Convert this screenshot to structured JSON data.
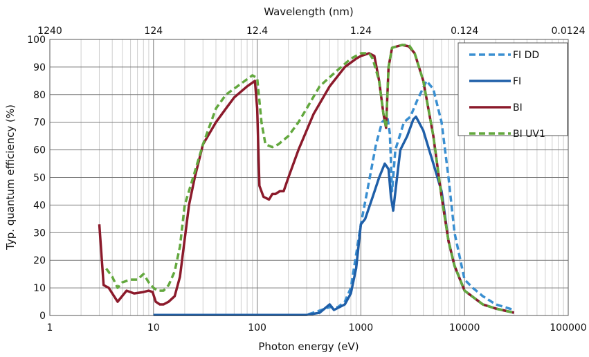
{
  "chart_data": {
    "type": "line",
    "xlabel": "Photon energy (eV)",
    "ylabel": "Typ. quantum efficiency (%)",
    "x2label": "Wavelength (nm)",
    "x_scale": "log",
    "xlim": [
      1,
      100000
    ],
    "ylim": [
      0,
      100
    ],
    "grid": true,
    "legend_position": "top-right",
    "x_ticks": [
      {
        "value": 1,
        "label": "1"
      },
      {
        "value": 10,
        "label": "10"
      },
      {
        "value": 100,
        "label": "100"
      },
      {
        "value": 1000,
        "label": "1000"
      },
      {
        "value": 10000,
        "label": "10000"
      },
      {
        "value": 100000,
        "label": "100000"
      }
    ],
    "x2_ticks": [
      {
        "value": 1,
        "label": "1240"
      },
      {
        "value": 10,
        "label": "124"
      },
      {
        "value": 100,
        "label": "12.4"
      },
      {
        "value": 1000,
        "label": "1.24"
      },
      {
        "value": 10000,
        "label": "0.124"
      },
      {
        "value": 100000,
        "label": "0.0124"
      }
    ],
    "y_ticks": [
      0,
      10,
      20,
      30,
      40,
      50,
      60,
      70,
      80,
      90,
      100
    ],
    "series": [
      {
        "name": "FI DD",
        "color": "#3a8fd1",
        "dash": "dashed",
        "points": [
          [
            10,
            0.2
          ],
          [
            100,
            0.2
          ],
          [
            300,
            0.2
          ],
          [
            500,
            3
          ],
          [
            600,
            3
          ],
          [
            700,
            5
          ],
          [
            800,
            10
          ],
          [
            900,
            22
          ],
          [
            1000,
            33
          ],
          [
            1150,
            45
          ],
          [
            1400,
            62
          ],
          [
            1600,
            70
          ],
          [
            1800,
            72
          ],
          [
            1900,
            66
          ],
          [
            2000,
            45
          ],
          [
            2150,
            60
          ],
          [
            2600,
            70
          ],
          [
            3000,
            72
          ],
          [
            3500,
            78
          ],
          [
            4300,
            85
          ],
          [
            5000,
            82
          ],
          [
            6000,
            70
          ],
          [
            7000,
            50
          ],
          [
            8000,
            30
          ],
          [
            10000,
            13
          ],
          [
            12000,
            10
          ],
          [
            15000,
            7
          ],
          [
            20000,
            4
          ],
          [
            30000,
            2
          ]
        ]
      },
      {
        "name": "FI",
        "color": "#1f5fa8",
        "dash": "solid",
        "points": [
          [
            10,
            0.2
          ],
          [
            100,
            0.2
          ],
          [
            300,
            0.2
          ],
          [
            400,
            1
          ],
          [
            500,
            4
          ],
          [
            550,
            2
          ],
          [
            700,
            4
          ],
          [
            800,
            8
          ],
          [
            900,
            17
          ],
          [
            1000,
            33
          ],
          [
            1100,
            35
          ],
          [
            1300,
            43
          ],
          [
            1500,
            50
          ],
          [
            1700,
            55
          ],
          [
            1850,
            53
          ],
          [
            1950,
            43
          ],
          [
            2050,
            38
          ],
          [
            2200,
            48
          ],
          [
            2400,
            60
          ],
          [
            2800,
            65
          ],
          [
            3200,
            71
          ],
          [
            3400,
            72
          ],
          [
            4000,
            67
          ],
          [
            5000,
            55
          ],
          [
            6000,
            45
          ],
          [
            7000,
            27
          ],
          [
            8000,
            18
          ],
          [
            10000,
            9
          ],
          [
            15000,
            4
          ],
          [
            20000,
            2.5
          ],
          [
            30000,
            1
          ]
        ]
      },
      {
        "name": "BI",
        "color": "#8b1a2b",
        "dash": "solid",
        "points": [
          [
            3,
            33
          ],
          [
            3.3,
            11
          ],
          [
            3.7,
            10
          ],
          [
            4.5,
            5
          ],
          [
            5.5,
            9
          ],
          [
            6.5,
            8
          ],
          [
            8,
            8.5
          ],
          [
            9,
            9
          ],
          [
            9.8,
            8.5
          ],
          [
            10.5,
            5
          ],
          [
            11.5,
            4
          ],
          [
            12.5,
            4
          ],
          [
            14,
            5
          ],
          [
            16,
            7
          ],
          [
            18,
            14
          ],
          [
            22,
            40
          ],
          [
            25,
            50
          ],
          [
            30,
            62
          ],
          [
            40,
            70
          ],
          [
            50,
            75
          ],
          [
            60,
            79
          ],
          [
            80,
            83
          ],
          [
            95,
            85
          ],
          [
            100,
            75
          ],
          [
            105,
            47
          ],
          [
            115,
            43
          ],
          [
            130,
            42
          ],
          [
            140,
            44
          ],
          [
            150,
            44
          ],
          [
            165,
            45
          ],
          [
            180,
            45
          ],
          [
            200,
            50
          ],
          [
            250,
            60
          ],
          [
            350,
            73
          ],
          [
            500,
            83
          ],
          [
            700,
            90
          ],
          [
            900,
            93
          ],
          [
            1000,
            94
          ],
          [
            1200,
            95
          ],
          [
            1350,
            94
          ],
          [
            1500,
            85
          ],
          [
            1650,
            73
          ],
          [
            1750,
            68
          ],
          [
            1850,
            90
          ],
          [
            2000,
            97
          ],
          [
            2500,
            98
          ],
          [
            2900,
            97.5
          ],
          [
            3300,
            95
          ],
          [
            4000,
            85
          ],
          [
            5000,
            65
          ],
          [
            6000,
            43
          ],
          [
            7000,
            27
          ],
          [
            8000,
            18
          ],
          [
            10000,
            9
          ],
          [
            15000,
            4
          ],
          [
            20000,
            2.5
          ],
          [
            30000,
            1
          ]
        ]
      },
      {
        "name": "BI UV1",
        "color": "#63a83e",
        "dash": "dashed",
        "points": [
          [
            3.5,
            17
          ],
          [
            4,
            14
          ],
          [
            4.5,
            10
          ],
          [
            5,
            12
          ],
          [
            6,
            13
          ],
          [
            7,
            13
          ],
          [
            8,
            15
          ],
          [
            9,
            12
          ],
          [
            10,
            10
          ],
          [
            11,
            9
          ],
          [
            12.5,
            9
          ],
          [
            14,
            11
          ],
          [
            16,
            16
          ],
          [
            18,
            25
          ],
          [
            20,
            40
          ],
          [
            25,
            52
          ],
          [
            30,
            62
          ],
          [
            40,
            75
          ],
          [
            50,
            80
          ],
          [
            70,
            84
          ],
          [
            90,
            87
          ],
          [
            100,
            86
          ],
          [
            110,
            70
          ],
          [
            120,
            62
          ],
          [
            140,
            61
          ],
          [
            160,
            62
          ],
          [
            200,
            65
          ],
          [
            250,
            70
          ],
          [
            300,
            75
          ],
          [
            400,
            83
          ],
          [
            600,
            89
          ],
          [
            800,
            93
          ],
          [
            1000,
            95
          ],
          [
            1200,
            95
          ],
          [
            1300,
            93
          ],
          [
            1500,
            85
          ],
          [
            1650,
            73
          ],
          [
            1750,
            68
          ],
          [
            1850,
            90
          ],
          [
            2000,
            97
          ],
          [
            2500,
            98
          ],
          [
            2900,
            98
          ],
          [
            3300,
            95
          ],
          [
            4000,
            85
          ],
          [
            5000,
            65
          ],
          [
            6000,
            43
          ],
          [
            7000,
            27
          ],
          [
            8000,
            18
          ],
          [
            10000,
            9
          ],
          [
            15000,
            4
          ],
          [
            20000,
            2.5
          ],
          [
            30000,
            1
          ]
        ]
      }
    ]
  }
}
